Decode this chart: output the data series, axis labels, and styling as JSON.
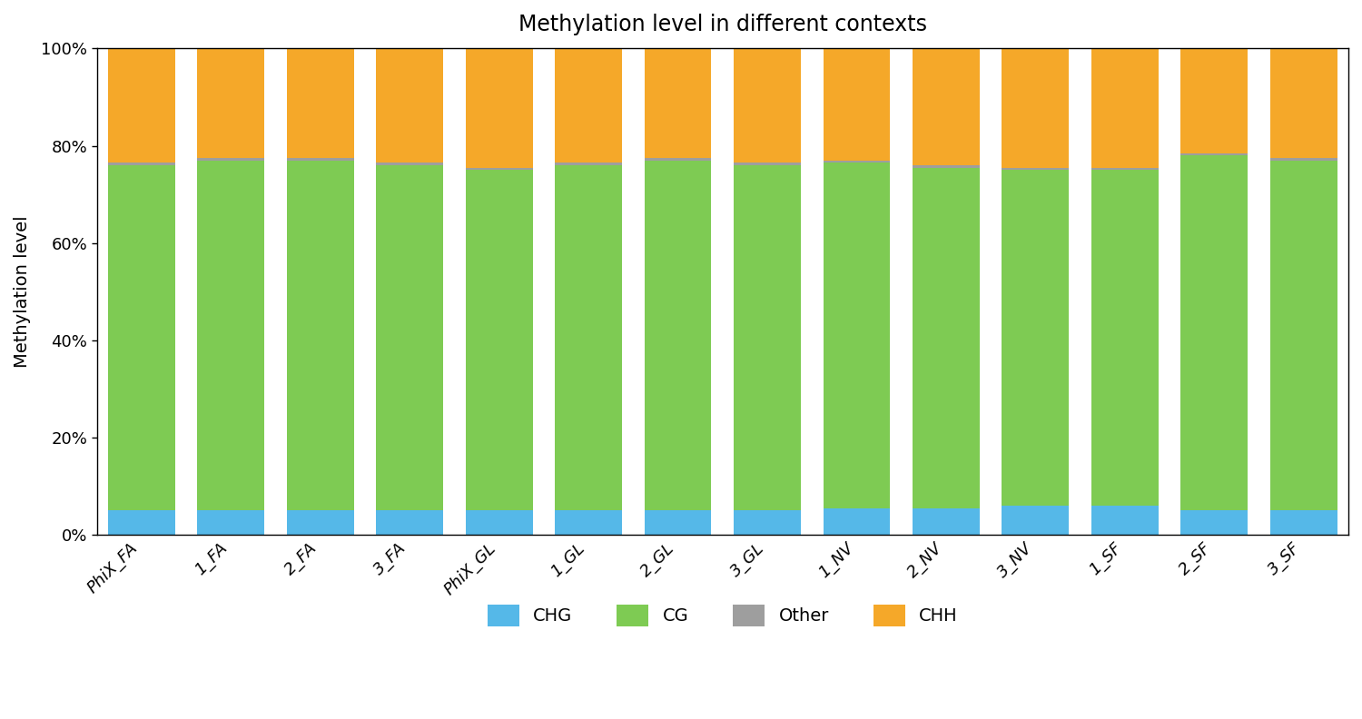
{
  "title": "Methylation level in different contexts",
  "ylabel": "Methylation level",
  "categories": [
    "PhiX_FA",
    "1_FA",
    "2_FA",
    "3_FA",
    "PhiX_GL",
    "1_GL",
    "2_GL",
    "3_GL",
    "1_NV",
    "2_NV",
    "3_NV",
    "1_SF",
    "2_SF",
    "3_SF"
  ],
  "CHG": [
    0.05,
    0.05,
    0.05,
    0.05,
    0.05,
    0.05,
    0.05,
    0.05,
    0.055,
    0.055,
    0.06,
    0.06,
    0.05,
    0.05
  ],
  "CG": [
    0.71,
    0.72,
    0.72,
    0.71,
    0.7,
    0.71,
    0.72,
    0.71,
    0.71,
    0.7,
    0.69,
    0.69,
    0.73,
    0.72
  ],
  "Other": [
    0.005,
    0.005,
    0.005,
    0.005,
    0.005,
    0.005,
    0.005,
    0.005,
    0.005,
    0.005,
    0.005,
    0.005,
    0.005,
    0.005
  ],
  "CHH": [
    0.235,
    0.225,
    0.225,
    0.235,
    0.245,
    0.235,
    0.225,
    0.235,
    0.23,
    0.24,
    0.245,
    0.245,
    0.215,
    0.225
  ],
  "colors": {
    "CHG": "#55b8e8",
    "CG": "#7ecb53",
    "Other": "#9e9e9e",
    "CHH": "#f5a829"
  },
  "legend_order": [
    "CHG",
    "CG",
    "Other",
    "CHH"
  ],
  "ylim": [
    0,
    1
  ],
  "yticks": [
    0.0,
    0.2,
    0.4,
    0.6,
    0.8,
    1.0
  ],
  "yticklabels": [
    "0%",
    "20%",
    "40%",
    "60%",
    "80%",
    "100%"
  ],
  "bar_width": 0.75,
  "background_color": "#ffffff",
  "title_fontsize": 17,
  "label_fontsize": 14,
  "tick_fontsize": 13,
  "legend_fontsize": 14
}
